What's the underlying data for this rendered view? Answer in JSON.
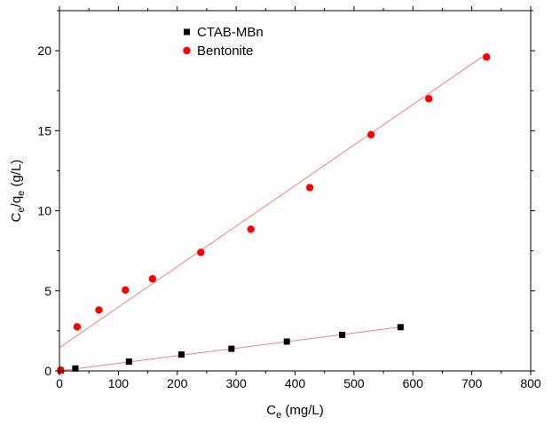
{
  "chart_data": {
    "type": "scatter",
    "title": "",
    "xlabel": {
      "base": "C",
      "sub": "e",
      "rest": " (mg/L)"
    },
    "ylabel": {
      "base": "C",
      "sub1": "e",
      "mid": "/q",
      "sub2": "e",
      "rest": " (g/L)"
    },
    "xlim": [
      0,
      800
    ],
    "ylim": [
      0,
      22.5
    ],
    "xticks": [
      0,
      100,
      200,
      300,
      400,
      500,
      600,
      700,
      800
    ],
    "yticks": [
      0,
      5,
      10,
      15,
      20
    ],
    "legend_position": "top-left",
    "series": [
      {
        "name": "CTAB-MBn",
        "marker": "square",
        "color": "#000000",
        "x": [
          2,
          27,
          118,
          207,
          292,
          386,
          480,
          579
        ],
        "y": [
          0.02,
          0.15,
          0.58,
          1.02,
          1.38,
          1.83,
          2.25,
          2.73
        ],
        "fit": {
          "x": [
            0,
            580
          ],
          "y": [
            0.0,
            2.74
          ],
          "color": "#f08080"
        }
      },
      {
        "name": "Bentonite",
        "marker": "circle",
        "color": "#ff0000",
        "x": [
          2,
          30,
          67,
          112,
          158,
          240,
          325,
          425,
          529,
          627,
          725
        ],
        "y": [
          0.05,
          2.75,
          3.8,
          5.05,
          5.75,
          7.4,
          8.85,
          11.45,
          14.75,
          17.0,
          19.6
        ],
        "fit": {
          "x": [
            0,
            727
          ],
          "y": [
            1.45,
            19.85
          ],
          "color": "#f08080"
        }
      }
    ]
  }
}
